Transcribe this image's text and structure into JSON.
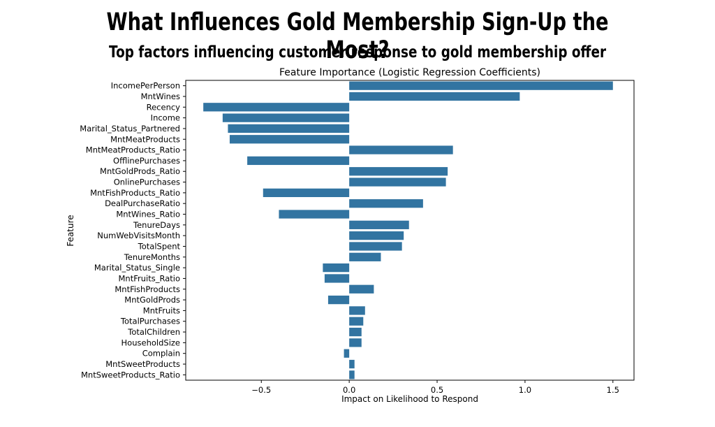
{
  "header": {
    "title": "What Influences Gold Membership Sign-Up the Most?",
    "subtitle": "Top factors influencing customer response to gold membership offer"
  },
  "colors": {
    "bar": "#3274a1",
    "axis": "#000000"
  },
  "chart_data": {
    "type": "bar",
    "orientation": "horizontal",
    "title": "Feature Importance (Logistic Regression Coefficients)",
    "xlabel": "Impact on Likelihood to Respond",
    "ylabel": "Feature",
    "xlim": [
      -0.93,
      1.62
    ],
    "xticks": [
      -0.5,
      0.0,
      0.5,
      1.0,
      1.5
    ],
    "xtick_labels": [
      "−0.5",
      "0.0",
      "0.5",
      "1.0",
      "1.5"
    ],
    "grid": false,
    "categories": [
      "IncomePerPerson",
      "MntWines",
      "Recency",
      "Income",
      "Marital_Status_Partnered",
      "MntMeatProducts",
      "MntMeatProducts_Ratio",
      "OfflinePurchases",
      "MntGoldProds_Ratio",
      "OnlinePurchases",
      "MntFishProducts_Ratio",
      "DealPurchaseRatio",
      "MntWines_Ratio",
      "TenureDays",
      "NumWebVisitsMonth",
      "TotalSpent",
      "TenureMonths",
      "Marital_Status_Single",
      "MntFruits_Ratio",
      "MntFishProducts",
      "MntGoldProds",
      "MntFruits",
      "TotalPurchases",
      "TotalChildren",
      "HouseholdSize",
      "Complain",
      "MntSweetProducts",
      "MntSweetProducts_Ratio"
    ],
    "values": [
      1.5,
      0.97,
      -0.83,
      -0.72,
      -0.69,
      -0.68,
      0.59,
      -0.58,
      0.56,
      0.55,
      -0.49,
      0.42,
      -0.4,
      0.34,
      0.31,
      0.3,
      0.18,
      -0.15,
      -0.14,
      0.14,
      -0.12,
      0.09,
      0.08,
      0.07,
      0.07,
      -0.03,
      0.03,
      0.03
    ]
  }
}
